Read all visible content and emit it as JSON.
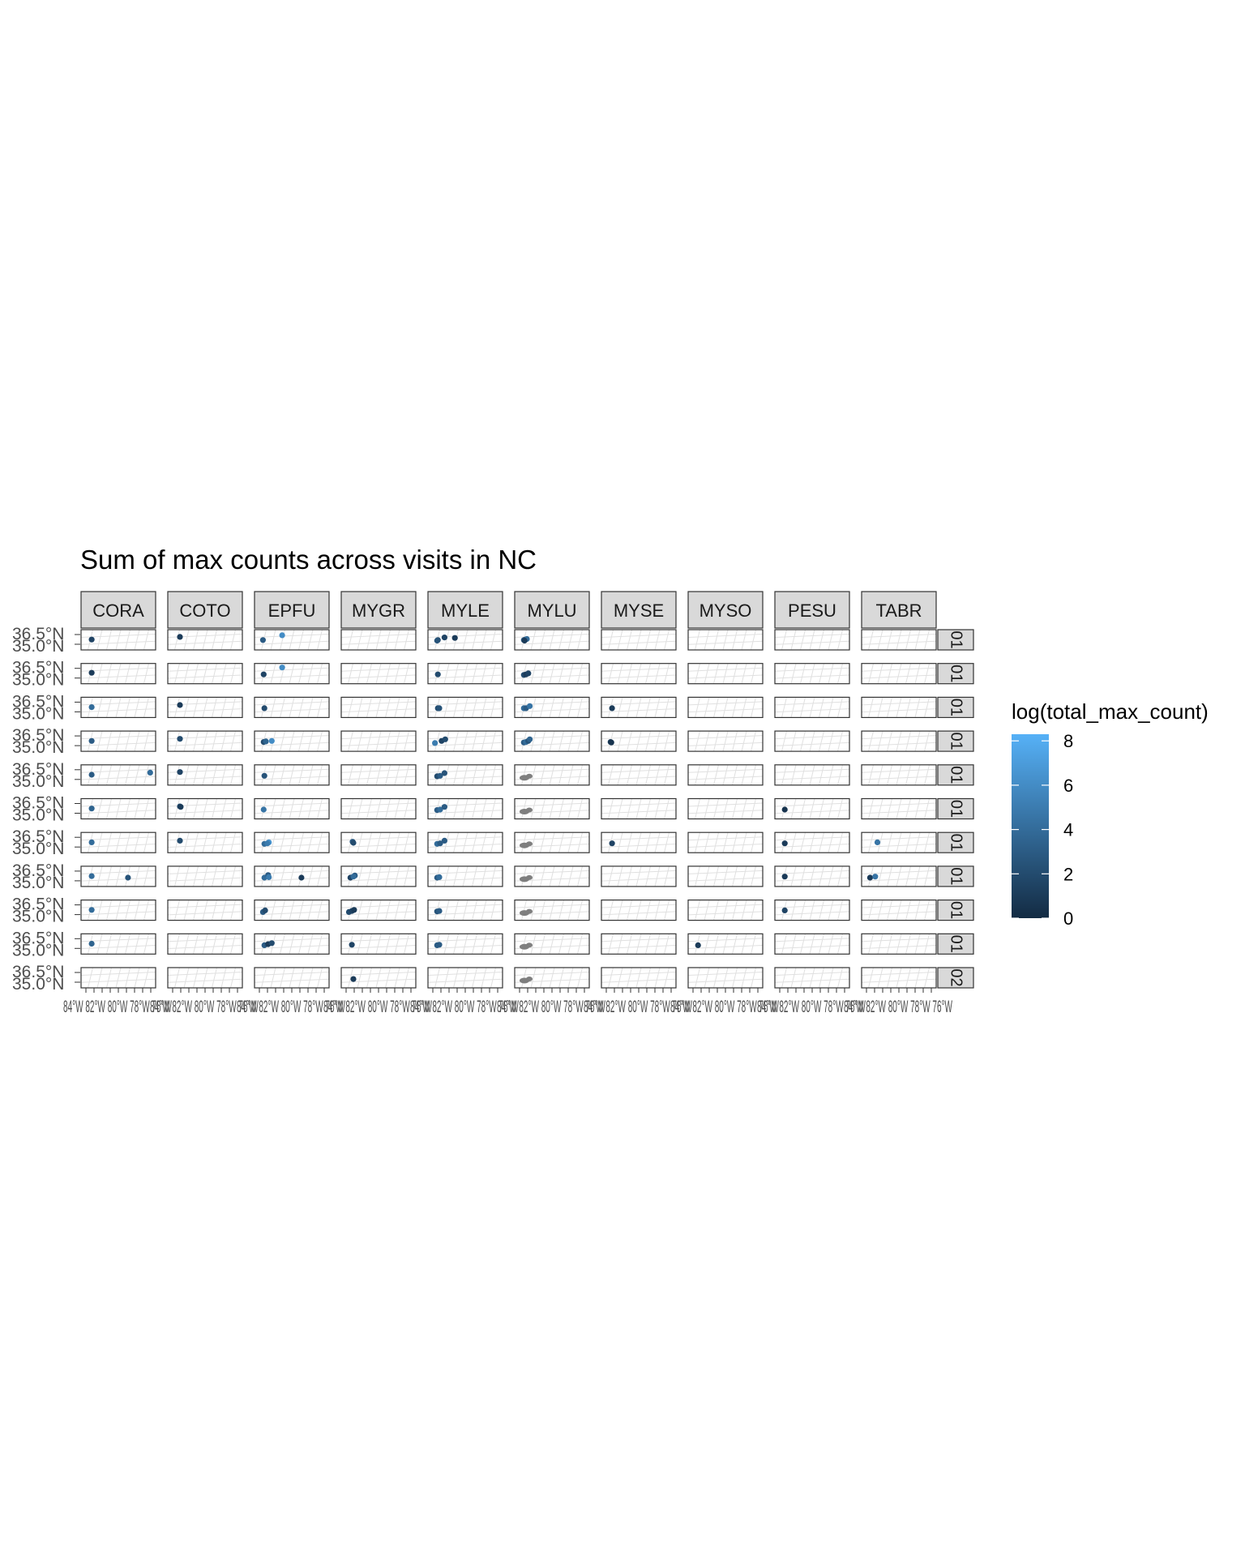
{
  "title": "Sum of max counts across visits in NC",
  "chart_data": {
    "type": "scatter",
    "title": "Sum of max counts across visits in NC",
    "facet_columns": [
      "CORA",
      "COTO",
      "EPFU",
      "MYGR",
      "MYLE",
      "MYLU",
      "MYSE",
      "MYSO",
      "PESU",
      "TABR"
    ],
    "facet_rows": [
      "01",
      "01",
      "01",
      "01",
      "01",
      "01",
      "01",
      "01",
      "01",
      "01",
      "02"
    ],
    "y_tick_labels": [
      "36.5°N",
      "35.0°N"
    ],
    "x_tick_labels_overplotted": "84°W 82°W 80°W 78°W 76°W",
    "legend": {
      "title": "log(total_max_count)",
      "position": "right",
      "min": 0,
      "max": 8.3,
      "ticks": [
        0,
        2,
        4,
        6,
        8
      ],
      "low_color": "#132B43",
      "high_color": "#56B1F7",
      "na_color": "#7F7F7F"
    },
    "grid": true,
    "panel_points": [
      {
        "row": 0,
        "col": 0,
        "points": [
          {
            "lon": -83.5,
            "lat": 35.3,
            "v": 1.5
          }
        ]
      },
      {
        "row": 0,
        "col": 1,
        "points": [
          {
            "lon": -83.3,
            "lat": 35.8,
            "v": 1
          }
        ]
      },
      {
        "row": 0,
        "col": 2,
        "points": [
          {
            "lon": -83.8,
            "lat": 35.2,
            "v": 3
          },
          {
            "lon": -81.2,
            "lat": 36.1,
            "v": 6
          }
        ]
      },
      {
        "row": 0,
        "col": 4,
        "points": [
          {
            "lon": -83.6,
            "lat": 35.2,
            "v": 2
          },
          {
            "lon": -83.7,
            "lat": 35.1,
            "v": 2.5
          },
          {
            "lon": -82.7,
            "lat": 35.7,
            "v": 1.5
          },
          {
            "lon": -81.3,
            "lat": 35.6,
            "v": 1
          }
        ]
      },
      {
        "row": 0,
        "col": 5,
        "points": [
          {
            "lon": -83.7,
            "lat": 35.2,
            "v": 3
          },
          {
            "lon": -83.5,
            "lat": 35.3,
            "v": 2
          },
          {
            "lon": -83.3,
            "lat": 35.4,
            "v": 4
          },
          {
            "lon": -83.6,
            "lat": 35.1,
            "v": 1
          }
        ]
      },
      {
        "row": 1,
        "col": 0,
        "points": [
          {
            "lon": -83.5,
            "lat": 35.4,
            "v": 1
          }
        ]
      },
      {
        "row": 1,
        "col": 2,
        "points": [
          {
            "lon": -83.7,
            "lat": 35.1,
            "v": 1.5
          },
          {
            "lon": -81.2,
            "lat": 36.4,
            "v": 6
          }
        ]
      },
      {
        "row": 1,
        "col": 4,
        "points": [
          {
            "lon": -83.6,
            "lat": 35.1,
            "v": 2
          }
        ]
      },
      {
        "row": 1,
        "col": 5,
        "points": [
          {
            "lon": -83.7,
            "lat": 35.0,
            "v": 2
          },
          {
            "lon": -83.4,
            "lat": 35.1,
            "v": 1
          },
          {
            "lon": -83.1,
            "lat": 35.3,
            "v": 1.5
          }
        ]
      },
      {
        "row": 2,
        "col": 0,
        "points": [
          {
            "lon": -83.5,
            "lat": 35.3,
            "v": 4
          }
        ]
      },
      {
        "row": 2,
        "col": 1,
        "points": [
          {
            "lon": -83.3,
            "lat": 35.7,
            "v": 1
          }
        ]
      },
      {
        "row": 2,
        "col": 2,
        "points": [
          {
            "lon": -83.6,
            "lat": 35.1,
            "v": 2
          }
        ]
      },
      {
        "row": 2,
        "col": 4,
        "points": [
          {
            "lon": -83.6,
            "lat": 35.1,
            "v": 2
          },
          {
            "lon": -83.4,
            "lat": 35.1,
            "v": 2.5
          }
        ]
      },
      {
        "row": 2,
        "col": 5,
        "points": [
          {
            "lon": -83.7,
            "lat": 35.1,
            "v": 4
          },
          {
            "lon": -83.4,
            "lat": 35.1,
            "v": 3
          },
          {
            "lon": -82.9,
            "lat": 35.5,
            "v": 4.5
          }
        ]
      },
      {
        "row": 2,
        "col": 6,
        "points": [
          {
            "lon": -83.5,
            "lat": 35.1,
            "v": 1
          }
        ]
      },
      {
        "row": 3,
        "col": 0,
        "points": [
          {
            "lon": -83.5,
            "lat": 35.3,
            "v": 3
          }
        ]
      },
      {
        "row": 3,
        "col": 1,
        "points": [
          {
            "lon": -83.3,
            "lat": 35.7,
            "v": 2
          }
        ]
      },
      {
        "row": 3,
        "col": 2,
        "points": [
          {
            "lon": -83.7,
            "lat": 35.1,
            "v": 2
          },
          {
            "lon": -83.4,
            "lat": 35.2,
            "v": 3.5
          },
          {
            "lon": -82.6,
            "lat": 35.3,
            "v": 6
          }
        ]
      },
      {
        "row": 3,
        "col": 4,
        "points": [
          {
            "lon": -84.0,
            "lat": 34.9,
            "v": 5
          },
          {
            "lon": -83.1,
            "lat": 35.3,
            "v": 1.5
          },
          {
            "lon": -82.6,
            "lat": 35.6,
            "v": 2
          }
        ]
      },
      {
        "row": 3,
        "col": 5,
        "points": [
          {
            "lon": -83.7,
            "lat": 35.0,
            "v": 3
          },
          {
            "lon": -83.4,
            "lat": 35.1,
            "v": 4
          },
          {
            "lon": -83.1,
            "lat": 35.3,
            "v": 2.5
          },
          {
            "lon": -82.9,
            "lat": 35.6,
            "v": 3.5
          }
        ]
      },
      {
        "row": 3,
        "col": 6,
        "points": [
          {
            "lon": -83.7,
            "lat": 35.1,
            "v": 1
          },
          {
            "lon": -83.6,
            "lat": 35.0,
            "v": 0.5
          }
        ]
      },
      {
        "row": 4,
        "col": 0,
        "points": [
          {
            "lon": -83.5,
            "lat": 35.3,
            "v": 3
          },
          {
            "lon": -75.6,
            "lat": 35.7,
            "v": 4
          }
        ]
      },
      {
        "row": 4,
        "col": 1,
        "points": [
          {
            "lon": -83.3,
            "lat": 35.8,
            "v": 1.5
          }
        ]
      },
      {
        "row": 4,
        "col": 2,
        "points": [
          {
            "lon": -83.6,
            "lat": 35.1,
            "v": 2.5
          }
        ]
      },
      {
        "row": 4,
        "col": 4,
        "points": [
          {
            "lon": -83.7,
            "lat": 35.0,
            "v": 2
          },
          {
            "lon": -83.3,
            "lat": 35.1,
            "v": 3
          },
          {
            "lon": -82.7,
            "lat": 35.6,
            "v": 2.5
          }
        ]
      },
      {
        "row": 5,
        "col": 0,
        "points": [
          {
            "lon": -83.5,
            "lat": 35.3,
            "v": 3.5
          }
        ]
      },
      {
        "row": 5,
        "col": 1,
        "points": [
          {
            "lon": -83.3,
            "lat": 35.7,
            "v": 2
          },
          {
            "lon": -83.2,
            "lat": 35.6,
            "v": 1
          }
        ]
      },
      {
        "row": 5,
        "col": 2,
        "points": [
          {
            "lon": -83.7,
            "lat": 35.1,
            "v": 4.5
          }
        ]
      },
      {
        "row": 5,
        "col": 4,
        "points": [
          {
            "lon": -83.7,
            "lat": 35.0,
            "v": 3
          },
          {
            "lon": -83.3,
            "lat": 35.1,
            "v": 4
          },
          {
            "lon": -82.7,
            "lat": 35.6,
            "v": 3
          }
        ]
      },
      {
        "row": 5,
        "col": 8,
        "points": [
          {
            "lon": -83.6,
            "lat": 35.1,
            "v": 0.5
          }
        ]
      },
      {
        "row": 6,
        "col": 0,
        "points": [
          {
            "lon": -83.5,
            "lat": 35.3,
            "v": 4
          }
        ]
      },
      {
        "row": 6,
        "col": 1,
        "points": [
          {
            "lon": -83.3,
            "lat": 35.6,
            "v": 2
          }
        ]
      },
      {
        "row": 6,
        "col": 2,
        "points": [
          {
            "lon": -83.6,
            "lat": 35.0,
            "v": 4
          },
          {
            "lon": -83.0,
            "lat": 35.3,
            "v": 6.5
          },
          {
            "lon": -83.2,
            "lat": 35.1,
            "v": 5
          }
        ]
      },
      {
        "row": 6,
        "col": 3,
        "points": [
          {
            "lon": -83.4,
            "lat": 35.4,
            "v": 3
          },
          {
            "lon": -83.3,
            "lat": 35.2,
            "v": 2
          }
        ]
      },
      {
        "row": 6,
        "col": 4,
        "points": [
          {
            "lon": -83.7,
            "lat": 35.0,
            "v": 4
          },
          {
            "lon": -83.3,
            "lat": 35.1,
            "v": 3
          },
          {
            "lon": -82.7,
            "lat": 35.6,
            "v": 3
          }
        ]
      },
      {
        "row": 6,
        "col": 6,
        "points": [
          {
            "lon": -83.5,
            "lat": 35.1,
            "v": 1.5
          }
        ]
      },
      {
        "row": 6,
        "col": 8,
        "points": [
          {
            "lon": -83.6,
            "lat": 35.1,
            "v": 1
          }
        ]
      },
      {
        "row": 6,
        "col": 9,
        "points": [
          {
            "lon": -82.8,
            "lat": 35.3,
            "v": 4.5
          }
        ]
      },
      {
        "row": 7,
        "col": 0,
        "points": [
          {
            "lon": -83.5,
            "lat": 35.3,
            "v": 4
          },
          {
            "lon": -78.6,
            "lat": 35.0,
            "v": 2.5
          }
        ]
      },
      {
        "row": 7,
        "col": 1,
        "points": []
      },
      {
        "row": 7,
        "col": 2,
        "points": [
          {
            "lon": -83.6,
            "lat": 35.0,
            "v": 4
          },
          {
            "lon": -83.1,
            "lat": 35.5,
            "v": 3
          },
          {
            "lon": -83.0,
            "lat": 35.1,
            "v": 5
          },
          {
            "lon": -78.6,
            "lat": 35.0,
            "v": 1
          }
        ]
      },
      {
        "row": 7,
        "col": 3,
        "points": [
          {
            "lon": -83.7,
            "lat": 35.0,
            "v": 1.5
          },
          {
            "lon": -83.1,
            "lat": 35.4,
            "v": 3
          },
          {
            "lon": -83.3,
            "lat": 35.2,
            "v": 4
          }
        ]
      },
      {
        "row": 7,
        "col": 4,
        "points": [
          {
            "lon": -83.7,
            "lat": 35.0,
            "v": 3
          },
          {
            "lon": -83.4,
            "lat": 35.1,
            "v": 4
          }
        ]
      },
      {
        "row": 7,
        "col": 8,
        "points": [
          {
            "lon": -83.6,
            "lat": 35.2,
            "v": 1
          }
        ]
      },
      {
        "row": 7,
        "col": 9,
        "points": [
          {
            "lon": -83.8,
            "lat": 35.0,
            "v": 1
          },
          {
            "lon": -83.1,
            "lat": 35.2,
            "v": 4.5
          }
        ]
      },
      {
        "row": 8,
        "col": 0,
        "points": [
          {
            "lon": -83.5,
            "lat": 35.3,
            "v": 4
          }
        ]
      },
      {
        "row": 8,
        "col": 2,
        "points": [
          {
            "lon": -83.8,
            "lat": 34.9,
            "v": 3
          },
          {
            "lon": -83.5,
            "lat": 35.2,
            "v": 2
          }
        ]
      },
      {
        "row": 8,
        "col": 3,
        "points": [
          {
            "lon": -83.9,
            "lat": 34.9,
            "v": 2
          },
          {
            "lon": -83.5,
            "lat": 35.1,
            "v": 1.5
          },
          {
            "lon": -83.2,
            "lat": 35.3,
            "v": 1
          }
        ]
      },
      {
        "row": 8,
        "col": 4,
        "points": [
          {
            "lon": -83.7,
            "lat": 35.0,
            "v": 2.5
          },
          {
            "lon": -83.4,
            "lat": 35.1,
            "v": 3
          }
        ]
      },
      {
        "row": 8,
        "col": 8,
        "points": [
          {
            "lon": -83.6,
            "lat": 35.2,
            "v": 1.5
          }
        ]
      },
      {
        "row": 9,
        "col": 0,
        "points": [
          {
            "lon": -83.5,
            "lat": 35.3,
            "v": 3.5
          }
        ]
      },
      {
        "row": 9,
        "col": 2,
        "points": [
          {
            "lon": -83.6,
            "lat": 35.0,
            "v": 3
          },
          {
            "lon": -83.1,
            "lat": 35.2,
            "v": 1
          },
          {
            "lon": -82.6,
            "lat": 35.4,
            "v": 2
          }
        ]
      },
      {
        "row": 9,
        "col": 3,
        "points": [
          {
            "lon": -83.5,
            "lat": 35.1,
            "v": 1.5
          }
        ]
      },
      {
        "row": 9,
        "col": 4,
        "points": [
          {
            "lon": -83.7,
            "lat": 35.0,
            "v": 3
          },
          {
            "lon": -83.4,
            "lat": 35.1,
            "v": 3
          }
        ]
      },
      {
        "row": 9,
        "col": 7,
        "points": [
          {
            "lon": -83.6,
            "lat": 35.0,
            "v": 1
          }
        ]
      },
      {
        "row": 10,
        "col": 3,
        "points": [
          {
            "lon": -83.3,
            "lat": 35.0,
            "v": 1
          }
        ]
      }
    ],
    "na_panels": [
      {
        "row": 4,
        "col": 5
      },
      {
        "row": 5,
        "col": 5
      },
      {
        "row": 6,
        "col": 5
      },
      {
        "row": 7,
        "col": 5
      },
      {
        "row": 8,
        "col": 5
      },
      {
        "row": 9,
        "col": 5
      },
      {
        "row": 10,
        "col": 5
      }
    ]
  }
}
